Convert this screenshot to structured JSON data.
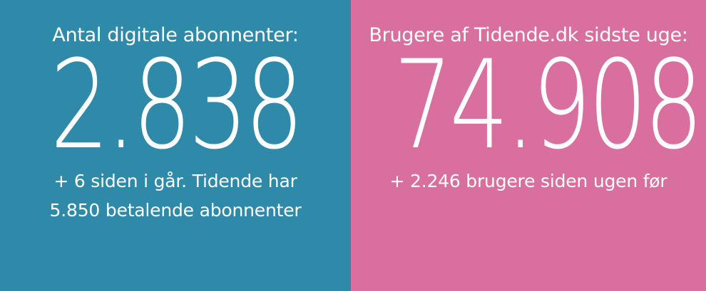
{
  "left_panel": {
    "label": "Antal digitale abonnenter:",
    "value": "2.838",
    "caption_line1": "+ 6 siden i går. Tidende har",
    "caption_line2": "5.850 betalende abonnenter",
    "background_color": "#2f8aaa"
  },
  "right_panel": {
    "label": "Brugere af Tidende.dk sidste uge:",
    "value": "74.908",
    "caption_line1": "+ 2.246 brugere siden ugen før",
    "background_color": "#d86f9f"
  }
}
